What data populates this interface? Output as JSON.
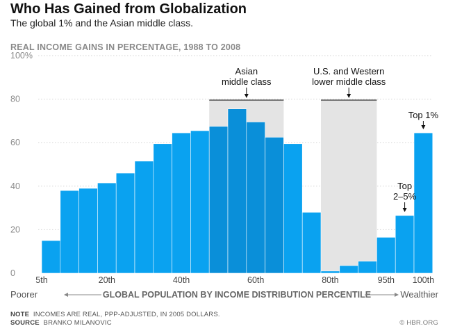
{
  "header": {
    "title": "Who Has Gained from Globalization",
    "subtitle": "The global 1% and the Asian middle class."
  },
  "chart_data": {
    "type": "bar",
    "title": "Who Has Gained from Globalization",
    "subtitle": "The global 1% and the Asian middle class.",
    "ylabel": "REAL INCOME GAINS IN PERCENTAGE, 1988 TO 2008",
    "xlabel": "GLOBAL POPULATION BY INCOME DISTRIBUTION PERCENTILE",
    "ylim": [
      0,
      100
    ],
    "y_ticks": [
      "100%",
      "80",
      "60",
      "40",
      "20",
      "0"
    ],
    "x_ticks": [
      "5th",
      "20th",
      "40th",
      "60th",
      "80th",
      "95th",
      "100th"
    ],
    "x_left_label": "Poorer",
    "x_right_label": "Wealthier",
    "grid": true,
    "values": [
      15,
      38,
      39,
      41.5,
      46,
      51.5,
      59.5,
      64.5,
      65.5,
      67.5,
      75.5,
      69.5,
      62.5,
      59.5,
      28,
      1,
      3.5,
      5.5,
      16.5,
      26.5,
      64.5
    ],
    "highlighted_indices": [
      9,
      10,
      11,
      12
    ],
    "colors": {
      "bar": "#0aa2f0",
      "bar_highlight": "#0a8fd9",
      "band": "#e4e4e4"
    },
    "annotations": {
      "asian_middle_class": [
        "Asian",
        "middle class"
      ],
      "us_lower_middle": [
        "U.S. and Western",
        "lower middle class"
      ],
      "top_2_5": [
        "Top",
        "2–5%"
      ],
      "top_1": "Top 1%"
    }
  },
  "footer": {
    "note_label": "NOTE",
    "note_text": "INCOMES ARE REAL, PPP-ADJUSTED, IN 2005 DOLLARS.",
    "source_label": "SOURCE",
    "source_text": "BRANKO MILANOVIC",
    "credit": "© HBR.ORG"
  }
}
